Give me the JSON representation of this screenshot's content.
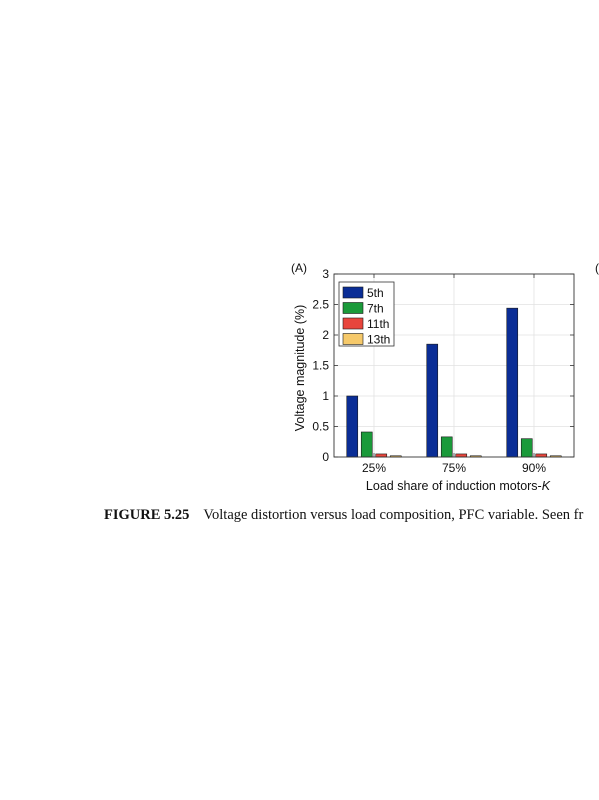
{
  "panel_labels": [
    "(A)",
    "("
  ],
  "caption": {
    "number": "FIGURE 5.25",
    "text": "Voltage distortion versus load composition, PFC variable. Seen fr"
  },
  "chart_data": {
    "type": "bar",
    "title": "",
    "xlabel_prefix": "Load share of induction motors-",
    "xlabel_italic": "K",
    "ylabel": "Voltage magnitude (%)",
    "categories": [
      "25%",
      "75%",
      "90%"
    ],
    "ylim": [
      0,
      3
    ],
    "yticks": [
      0,
      0.5,
      1,
      1.5,
      2,
      2.5,
      3
    ],
    "ytick_labels": [
      "0",
      "0.5",
      "1",
      "1.5",
      "2",
      "2.5",
      "3"
    ],
    "grid": true,
    "legend_position": "top-left",
    "series": [
      {
        "name": "5th",
        "color": "#0a2d96",
        "values": [
          1.0,
          1.85,
          2.44
        ]
      },
      {
        "name": "7th",
        "color": "#1a9a3a",
        "values": [
          0.41,
          0.33,
          0.3
        ]
      },
      {
        "name": "11th",
        "color": "#e8453c",
        "values": [
          0.05,
          0.05,
          0.05
        ]
      },
      {
        "name": "13th",
        "color": "#f6c96a",
        "values": [
          0.02,
          0.02,
          0.02
        ]
      }
    ]
  }
}
